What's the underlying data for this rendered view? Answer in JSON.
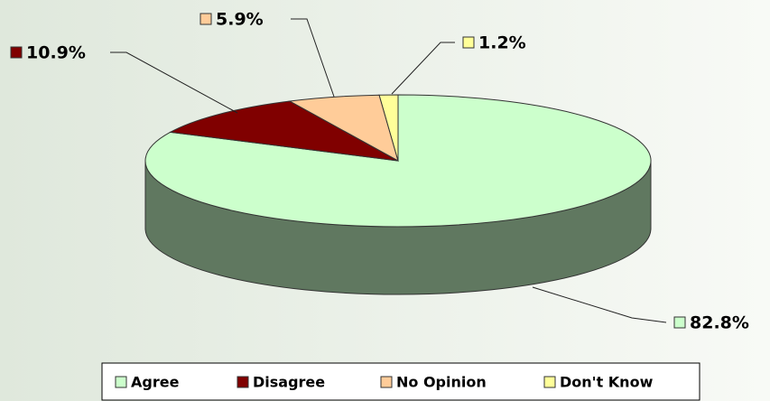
{
  "chart_data": {
    "type": "pie3d",
    "categories": [
      "Agree",
      "Disagree",
      "No Opinion",
      "Don't Know"
    ],
    "values": [
      82.8,
      10.9,
      5.9,
      1.2
    ],
    "value_labels": [
      "82.8%",
      "10.9%",
      "5.9%",
      "1.2%"
    ],
    "colors": [
      "#ccffcc",
      "#800000",
      "#ffcc99",
      "#ffff99"
    ],
    "legend": "bottom"
  }
}
